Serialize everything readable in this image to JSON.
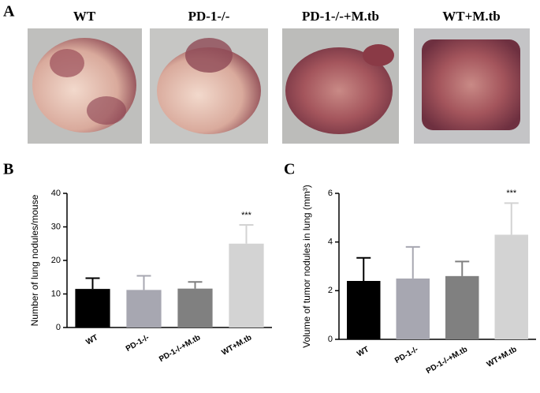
{
  "panel_labels": [
    "A",
    "B",
    "C"
  ],
  "photos": {
    "labels": [
      "WT",
      "PD-1-/-",
      "PD-1-/-+M.tb",
      "WT+M.tb"
    ]
  },
  "chart_data": [
    {
      "type": "bar",
      "ylabel": "Number of lung nodules/mouse",
      "categories": [
        "WT",
        "PD-1-/-",
        "PD-1-/-+M.tb",
        "WT+M.tb"
      ],
      "values": [
        11.5,
        11.2,
        11.6,
        25
      ],
      "errors": [
        3.2,
        4.2,
        2,
        5.6
      ],
      "colors": [
        "#000000",
        "#a7a7b1",
        "#808080",
        "#d3d3d3"
      ],
      "ylim": [
        0,
        40
      ],
      "yticks": [
        0,
        10,
        20,
        30,
        40
      ],
      "annotation": "***"
    },
    {
      "type": "bar",
      "ylabel": "Volume of tumor nodules in lung (mm³)",
      "categories": [
        "WT",
        "PD-1-/-",
        "PD-1-/-+M.tb",
        "WT+M.tb"
      ],
      "values": [
        2.4,
        2.5,
        2.6,
        4.3
      ],
      "errors": [
        0.95,
        1.3,
        0.6,
        1.3
      ],
      "colors": [
        "#000000",
        "#a7a7b1",
        "#808080",
        "#d3d3d3"
      ],
      "ylim": [
        0,
        6
      ],
      "yticks": [
        0,
        2,
        4,
        6
      ],
      "annotation": "***"
    }
  ]
}
